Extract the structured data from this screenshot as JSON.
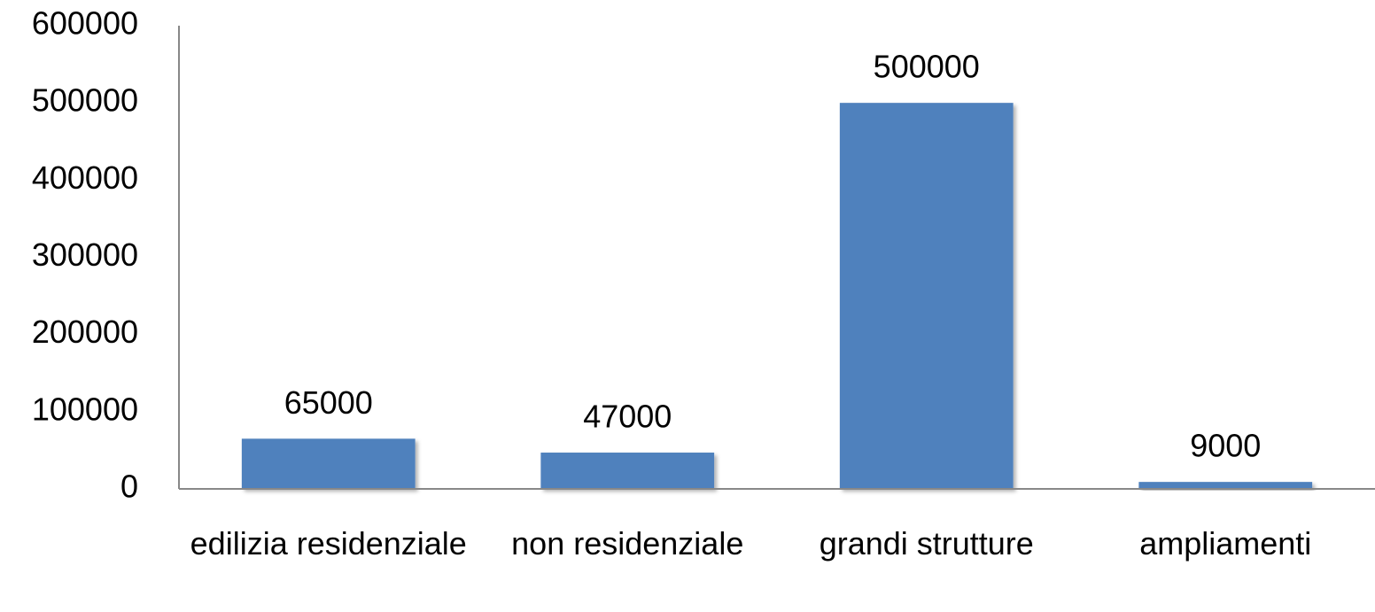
{
  "chart_data": {
    "type": "bar",
    "categories": [
      "edilizia residenziale",
      "non residenziale",
      "grandi strutture",
      "ampliamenti"
    ],
    "values": [
      65000,
      47000,
      500000,
      9000
    ],
    "color": "#4f81bd",
    "ylim": [
      0,
      600000
    ],
    "yticks": [
      0,
      100000,
      200000,
      300000,
      400000,
      500000,
      600000
    ],
    "grid": false
  }
}
